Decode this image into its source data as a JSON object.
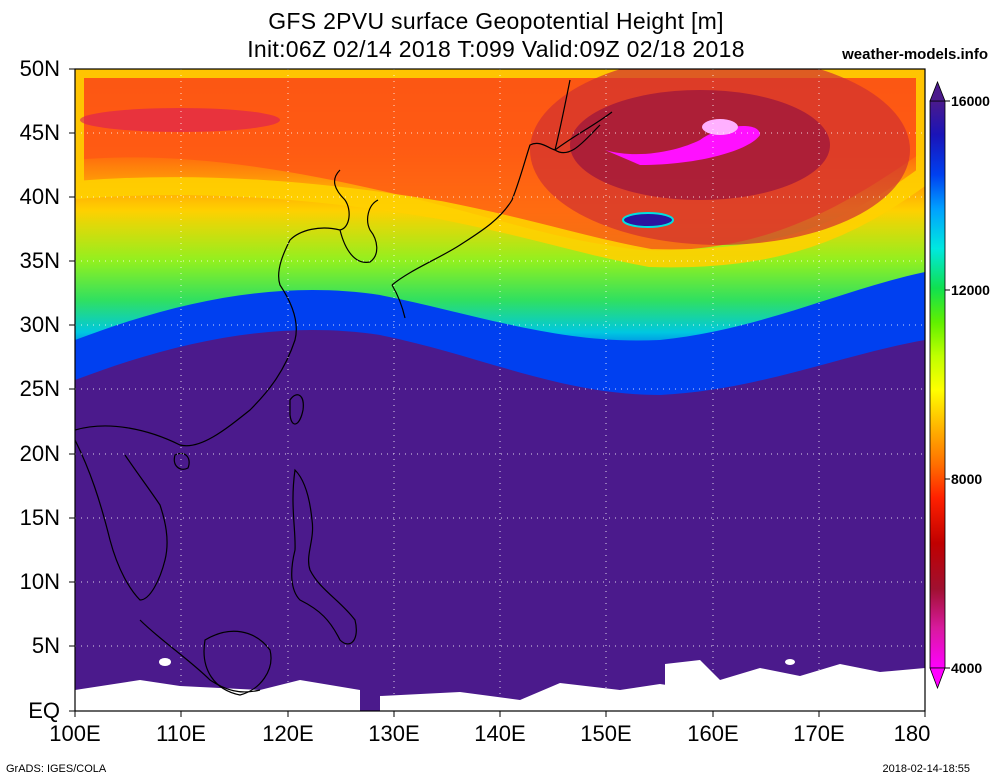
{
  "header": {
    "title_line1": "GFS 2PVU surface Geopotential Height [m]",
    "title_line2": "Init:06Z 02/14 2018 T:099 Valid:09Z 02/18 2018",
    "credit": "weather-models.info"
  },
  "axes": {
    "lat_labels": [
      "50N",
      "45N",
      "40N",
      "35N",
      "30N",
      "25N",
      "20N",
      "15N",
      "10N",
      "5N",
      "EQ"
    ],
    "lon_labels": [
      "100E",
      "110E",
      "120E",
      "130E",
      "140E",
      "150E",
      "160E",
      "170E",
      "180"
    ]
  },
  "colorbar": {
    "labels": [
      "16000",
      "12000",
      "8000",
      "4000"
    ],
    "colors": [
      "#ff00ff",
      "#d81a9e",
      "#a01030",
      "#c00000",
      "#e80000",
      "#ff3000",
      "#ff6000",
      "#ff9000",
      "#ffc000",
      "#ffff00",
      "#d8ff00",
      "#a0ff00",
      "#60f000",
      "#20e040",
      "#00f0a0",
      "#00e8e8",
      "#00b0ff",
      "#0070ff",
      "#0030e8",
      "#1010c0",
      "#3010a0",
      "#4b1a8c"
    ]
  },
  "footer": {
    "left": "GrADS: IGES/COLA",
    "right": "2018-02-14-18:55"
  }
}
